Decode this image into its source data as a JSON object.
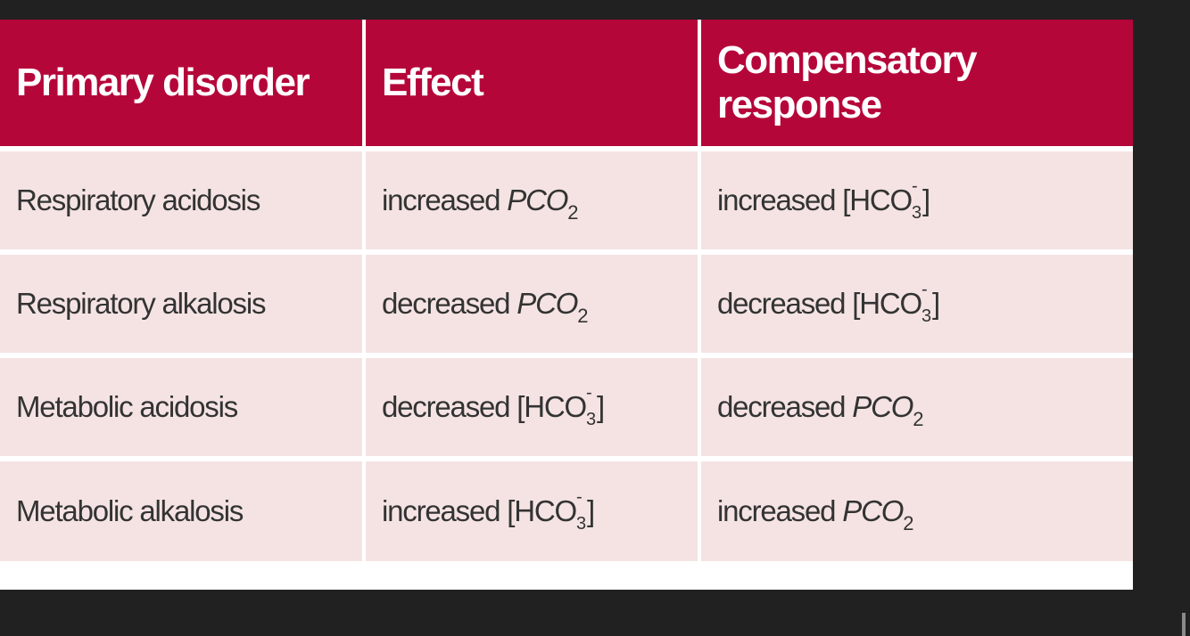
{
  "table": {
    "headers": [
      "Primary disorder",
      "Effect",
      "Compensatory response"
    ],
    "rows": [
      {
        "disorder": "Respiratory acidosis",
        "effect": {
          "prefix": "increased ",
          "symbol": "PCO",
          "sub": "2"
        },
        "response": {
          "prefix": "increased [HCO",
          "sup": "-",
          "sub": "3",
          "suffix": "]"
        }
      },
      {
        "disorder": "Respiratory alkalosis",
        "effect": {
          "prefix": "decreased ",
          "symbol": "PCO",
          "sub": "2"
        },
        "response": {
          "prefix": "decreased [HCO",
          "sup": "-",
          "sub": "3",
          "suffix": "]"
        }
      },
      {
        "disorder": "Metabolic acidosis",
        "effect": {
          "prefix": "decreased [HCO",
          "sup": "-",
          "sub": "3",
          "suffix": "]"
        },
        "response": {
          "prefix": "decreased ",
          "symbol": "PCO",
          "sub": "2"
        }
      },
      {
        "disorder": "Metabolic alkalosis",
        "effect": {
          "prefix": "increased [HCO",
          "sup": "-",
          "sub": "3",
          "suffix": "]"
        },
        "response": {
          "prefix": "increased ",
          "symbol": "PCO",
          "sub": "2"
        }
      }
    ]
  },
  "colors": {
    "header_bg": "#b5063a",
    "row_bg": "#f5e3e3",
    "page_bg": "#212121"
  }
}
